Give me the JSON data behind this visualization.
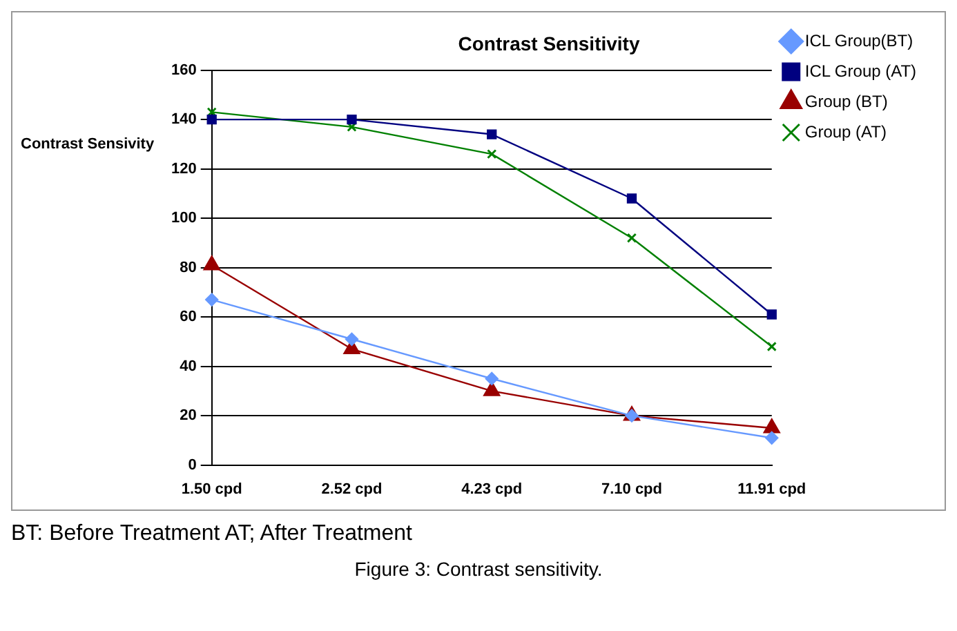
{
  "chart_data": {
    "type": "line",
    "title": "Contrast Sensitivity",
    "ylabel": "Contrast Sensivity",
    "categories": [
      "1.50 cpd",
      "2.52 cpd",
      "4.23 cpd",
      "7.10 cpd",
      "11.91 cpd"
    ],
    "series": [
      {
        "name": "ICL Group(BT)",
        "color": "#6699ff",
        "marker": "diamond",
        "values": [
          67,
          51,
          35,
          20,
          11
        ]
      },
      {
        "name": "ICL Group (AT)",
        "color": "#000080",
        "marker": "square",
        "values": [
          140,
          140,
          134,
          108,
          61
        ]
      },
      {
        "name": "Group (BT)",
        "color": "#990000",
        "marker": "triangle",
        "values": [
          81,
          47,
          30,
          20,
          15
        ]
      },
      {
        "name": "Group (AT)",
        "color": "#008000",
        "marker": "cross",
        "values": [
          143,
          137,
          126,
          92,
          48
        ]
      }
    ],
    "ylim": [
      0,
      160
    ],
    "yticks": [
      0,
      20,
      40,
      60,
      80,
      100,
      120,
      140,
      160
    ],
    "grid": "y",
    "legend": "top right",
    "line_style": "solid",
    "annotations": [
      "BT: Before Treatment AT; After Treatment",
      "Figure 3: Contrast sensitivity."
    ]
  }
}
